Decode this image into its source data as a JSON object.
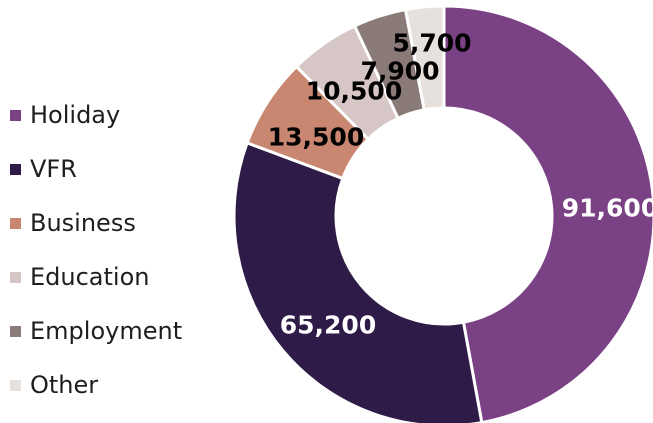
{
  "chart_data": {
    "type": "pie",
    "title": "",
    "donut": true,
    "legend_position": "left",
    "series": [
      {
        "label": "Holiday",
        "value": 91600,
        "display": "91,600",
        "color": "#7a4185",
        "label_color": "#ffffff"
      },
      {
        "label": "VFR",
        "value": 65200,
        "display": "65,200",
        "color": "#2f1b47",
        "label_color": "#ffffff"
      },
      {
        "label": "Business",
        "value": 13500,
        "display": "13,500",
        "color": "#c98670",
        "label_color": "#000000"
      },
      {
        "label": "Education",
        "value": 10500,
        "display": "10,500",
        "color": "#d6c6c5",
        "label_color": "#000000"
      },
      {
        "label": "Employment",
        "value": 7900,
        "display": "7,900",
        "color": "#8a7a78",
        "label_color": "#000000"
      },
      {
        "label": "Other",
        "value": 5700,
        "display": "5,700",
        "color": "#e6e1dd",
        "label_color": "#000000"
      }
    ]
  }
}
